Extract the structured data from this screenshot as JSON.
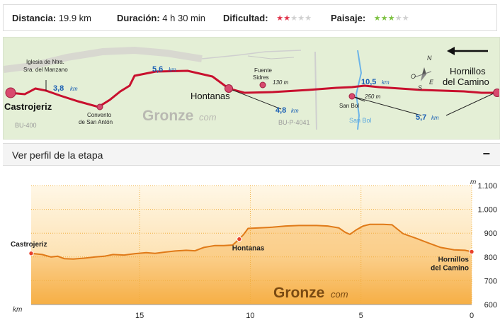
{
  "stats": {
    "distance_label": "Distancia:",
    "distance_value": "19.9 km",
    "duration_label": "Duración:",
    "duration_value": "4 h 30 min",
    "difficulty_label": "Dificultad:",
    "difficulty_rating": 2,
    "difficulty_max": 5,
    "difficulty_color": "#e0334a",
    "landscape_label": "Paisaje:",
    "landscape_rating": 3,
    "landscape_max": 5,
    "landscape_color": "#7dc242",
    "empty_star_color": "#d0d0d0"
  },
  "map": {
    "start_town": "Castrojeriz",
    "end_town_line1": "Hornillos",
    "end_town_line2": "del Camino",
    "mid_town": "Hontanas",
    "church_line1": "Iglesia de Ntra.",
    "church_line2": "Sra. del Manzano",
    "convento_line1": "Convento",
    "convento_line2": "de San Antón",
    "fuente_line1": "Fuente",
    "fuente_line2": "Sidres",
    "fuente_dist": "130 m",
    "sanbol_label": "San Bol",
    "sanbol_dist": "250 m",
    "river_label": "San Bol",
    "road_bu400": "BU-400",
    "road_bup4041": "BU-P-4041",
    "brand_main": "Gronze",
    "brand_suffix": "com",
    "seg1_num": "3,8",
    "seg2_num": "5,6",
    "seg3_num": "4,8",
    "seg4_num": "10,5",
    "seg5_num": "5,7",
    "unit": "km",
    "compass_n": "N",
    "compass_o": "O",
    "compass_e": "E",
    "compass_s": "S",
    "route_color": "#c8102e",
    "distance_color": "#1a5fb4"
  },
  "toggle": {
    "label": "Ver perfil de la etapa",
    "icon": "−"
  },
  "profile": {
    "y_unit": "m",
    "x_unit": "km",
    "brand_main": "Gronze",
    "brand_suffix": "com",
    "start_label": "Castrojeriz",
    "mid_label": "Hontanas",
    "end_label_line1": "Hornillos",
    "end_label_line2": "del Camino"
  },
  "chart_data": {
    "type": "area",
    "xlabel": "km",
    "ylabel": "m",
    "x_reversed": true,
    "xlim": [
      0,
      19.9
    ],
    "ylim": [
      600,
      1100
    ],
    "x_ticks": [
      "15",
      "10",
      "5",
      "0"
    ],
    "y_ticks": [
      "1.100",
      "1.000",
      "900",
      "800",
      "700",
      "600"
    ],
    "y_tick_values": [
      1100,
      1000,
      900,
      800,
      700,
      600
    ],
    "x_tick_values": [
      15,
      10,
      5,
      0
    ],
    "grid": true,
    "annotations": [
      {
        "label": "Castrojeriz",
        "x": 19.9,
        "y": 815
      },
      {
        "label": "Hontanas",
        "x": 10.5,
        "y": 875
      },
      {
        "label": "Hornillos del Camino",
        "x": 0,
        "y": 822
      }
    ],
    "series": [
      {
        "points": [
          [
            19.9,
            815
          ],
          [
            19.4,
            810
          ],
          [
            19.0,
            800
          ],
          [
            18.7,
            803
          ],
          [
            18.4,
            793
          ],
          [
            18.0,
            791
          ],
          [
            17.5,
            795
          ],
          [
            17.0,
            800
          ],
          [
            16.6,
            803
          ],
          [
            16.2,
            810
          ],
          [
            15.7,
            808
          ],
          [
            15.2,
            814
          ],
          [
            14.7,
            818
          ],
          [
            14.3,
            815
          ],
          [
            13.9,
            820
          ],
          [
            13.4,
            825
          ],
          [
            12.9,
            828
          ],
          [
            12.5,
            826
          ],
          [
            12.1,
            840
          ],
          [
            11.6,
            848
          ],
          [
            11.2,
            848
          ],
          [
            10.8,
            850
          ],
          [
            10.5,
            875
          ],
          [
            10.3,
            895
          ],
          [
            10.1,
            920
          ],
          [
            9.6,
            922
          ],
          [
            9.0,
            925
          ],
          [
            8.4,
            930
          ],
          [
            7.8,
            932
          ],
          [
            7.0,
            932
          ],
          [
            6.5,
            930
          ],
          [
            6.0,
            922
          ],
          [
            5.7,
            903
          ],
          [
            5.5,
            895
          ],
          [
            5.2,
            915
          ],
          [
            4.9,
            930
          ],
          [
            4.6,
            937
          ],
          [
            4.0,
            937
          ],
          [
            3.6,
            935
          ],
          [
            3.1,
            898
          ],
          [
            2.5,
            878
          ],
          [
            2.0,
            860
          ],
          [
            1.4,
            840
          ],
          [
            0.8,
            830
          ],
          [
            0.3,
            828
          ],
          [
            0.0,
            822
          ]
        ]
      }
    ]
  }
}
